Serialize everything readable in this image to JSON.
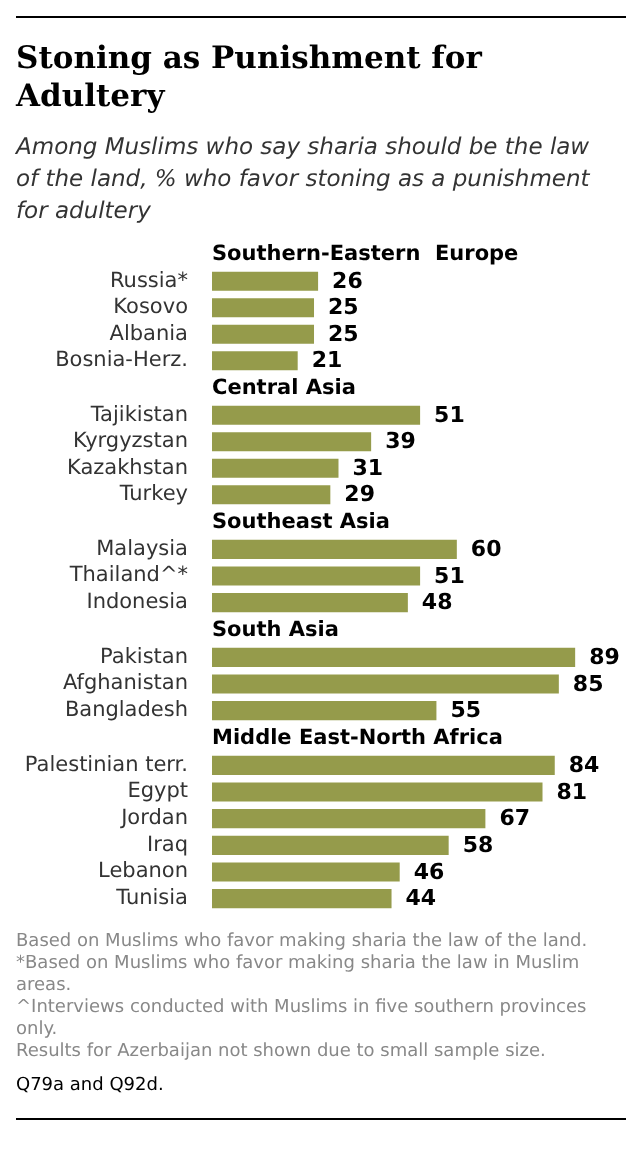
{
  "chart_data": [
    {
      "type": "other",
      "title": "Stoning as Punishment for Adultery",
      "subtitle": "Among Muslims who say sharia should be the law of the land, % who favor stoning as a punishment for adultery"
    },
    {
      "type": "bar",
      "orientation": "horizontal",
      "title": "Southern-Eastern  Europe",
      "categories": [
        "Russia*",
        "Kosovo",
        "Albania",
        "Bosnia-Herz."
      ],
      "values": [
        26,
        25,
        25,
        21
      ],
      "color": "#959b4b",
      "data_labels": true
    },
    {
      "type": "bar",
      "orientation": "horizontal",
      "title": "Central Asia",
      "categories": [
        "Tajikistan",
        "Kyrgyzstan",
        "Kazakhstan",
        "Turkey"
      ],
      "values": [
        51,
        39,
        31,
        29
      ],
      "color": "#959b4b",
      "data_labels": true
    },
    {
      "type": "bar",
      "orientation": "horizontal",
      "title": "Southeast Asia",
      "categories": [
        "Malaysia",
        "Thailand^*",
        "Indonesia"
      ],
      "values": [
        60,
        51,
        48
      ],
      "color": "#959b4b",
      "data_labels": true
    },
    {
      "type": "bar",
      "orientation": "horizontal",
      "title": "South Asia",
      "categories": [
        "Pakistan",
        "Afghanistan",
        "Bangladesh"
      ],
      "values": [
        89,
        85,
        55
      ],
      "color": "#959b4b",
      "data_labels": true
    },
    {
      "type": "bar",
      "orientation": "horizontal",
      "title": "Middle East-North Africa",
      "categories": [
        "Palestinian terr.",
        "Egypt",
        "Jordan",
        "Iraq",
        "Lebanon",
        "Tunisia"
      ],
      "values": [
        84,
        81,
        67,
        58,
        46,
        44
      ],
      "color": "#959b4b",
      "data_labels": true
    },
    {
      "type": "other",
      "annotations": [
        "Based on Muslims who favor making sharia the law of the land.",
        "*Based on Muslims who favor making sharia the law in Muslim areas.",
        "^Interviews conducted with Muslims in five southern provinces only.",
        "Results for Azerbaijan not shown due to small sample size.",
        "Q79a and Q92d."
      ]
    }
  ]
}
